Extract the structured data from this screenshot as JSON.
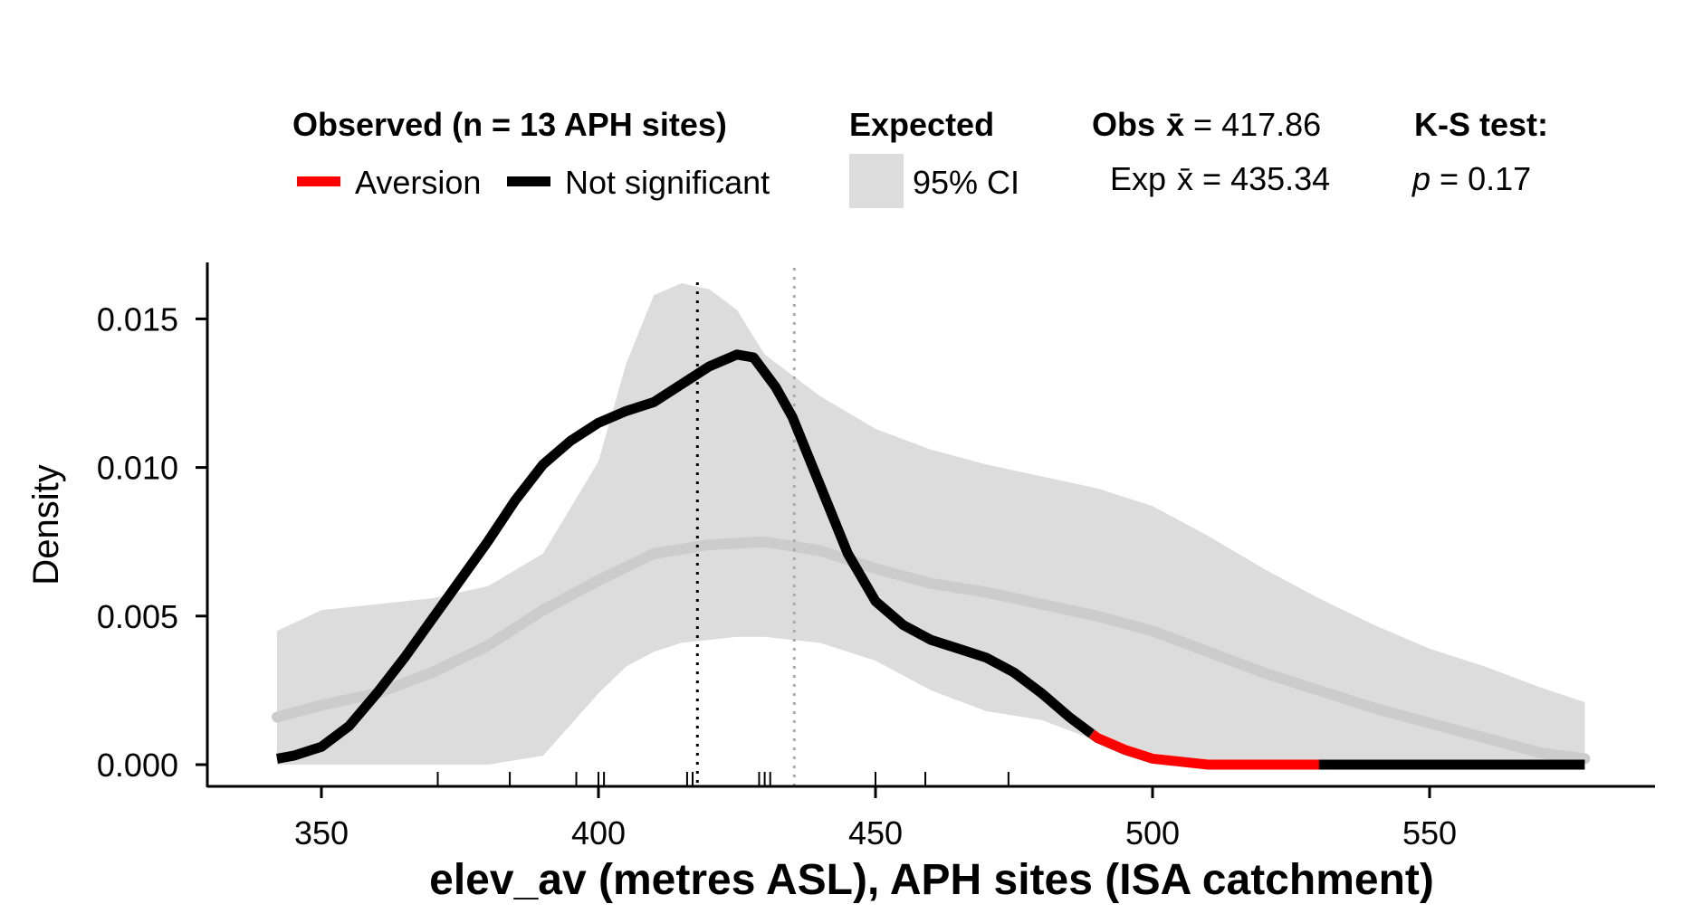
{
  "legend": {
    "observed_title": "Observed (n = 13 APH sites)",
    "observed_items": [
      {
        "label": "Aversion",
        "color": "#ff0000"
      },
      {
        "label": "Not significant",
        "color": "#000000"
      }
    ],
    "expected_title": "Expected",
    "expected_item": {
      "label": "95% CI",
      "color": "#dcdcdc"
    },
    "obs_mean_label": "Obs",
    "obs_mean_value": "417.86",
    "exp_mean_label": "Exp",
    "exp_mean_value": "435.34",
    "mean_symbol": "x̄",
    "ks_title": "K-S test:",
    "ks_p_label": "p",
    "ks_p_value": "0.17"
  },
  "chart_data": {
    "type": "area",
    "xlabel": "elev_av (metres ASL), APH sites (ISA catchment)",
    "ylabel": "Density",
    "xlim": [
      330,
      575
    ],
    "ylim": [
      -0.0005,
      0.017
    ],
    "x_ticks": [
      350,
      400,
      450,
      500,
      550
    ],
    "y_ticks": [
      0.0,
      0.005,
      0.01,
      0.015
    ],
    "y_tick_labels": [
      "0.000",
      "0.005",
      "0.010",
      "0.015"
    ],
    "obs_mean": 417.86,
    "exp_mean": 435.34,
    "colors": {
      "aversion": "#ff0000",
      "not_significant": "#000000",
      "ci_fill": "#dcdcdc",
      "expected_line": "#cccccc",
      "obs_mean_line": "#000000",
      "exp_mean_line": "#aaaaaa"
    },
    "rug": [
      371,
      384,
      396,
      400,
      401,
      416,
      417,
      429,
      430,
      431,
      450,
      459,
      474
    ],
    "series": [
      {
        "name": "95% CI",
        "kind": "band",
        "x": [
          342,
          350,
          360,
          370,
          380,
          390,
          400,
          405,
          410,
          415,
          420,
          425,
          430,
          440,
          450,
          460,
          470,
          480,
          490,
          500,
          510,
          520,
          530,
          540,
          550,
          560,
          570,
          578
        ],
        "upper": [
          0.0045,
          0.0052,
          0.0054,
          0.0056,
          0.006,
          0.0071,
          0.0102,
          0.0135,
          0.0158,
          0.0162,
          0.016,
          0.0153,
          0.0138,
          0.0124,
          0.0113,
          0.0106,
          0.0101,
          0.0097,
          0.0093,
          0.0087,
          0.0077,
          0.0066,
          0.0056,
          0.0047,
          0.0039,
          0.0033,
          0.0026,
          0.0021
        ],
        "lower": [
          0.0,
          0.0,
          0.0,
          0.0,
          0.0,
          0.0003,
          0.0024,
          0.0033,
          0.0038,
          0.0041,
          0.0042,
          0.0043,
          0.0043,
          0.0041,
          0.0035,
          0.0025,
          0.0018,
          0.0015,
          0.0008,
          0.0004,
          0.0001,
          0.0,
          0.0,
          0.0,
          0.0,
          0.0,
          0.0,
          0.0
        ]
      },
      {
        "name": "Expected",
        "kind": "line",
        "x": [
          342,
          350,
          360,
          370,
          380,
          390,
          400,
          410,
          420,
          430,
          440,
          450,
          460,
          470,
          480,
          490,
          500,
          510,
          520,
          530,
          540,
          550,
          560,
          570,
          578
        ],
        "y": [
          0.0016,
          0.002,
          0.0024,
          0.0031,
          0.004,
          0.0052,
          0.0062,
          0.0071,
          0.0074,
          0.0075,
          0.0072,
          0.0066,
          0.0061,
          0.0058,
          0.0054,
          0.005,
          0.0045,
          0.0038,
          0.0031,
          0.0025,
          0.0019,
          0.0014,
          0.0009,
          0.0004,
          0.0002
        ]
      },
      {
        "name": "Observed",
        "kind": "line",
        "x": [
          342,
          345,
          350,
          355,
          360,
          365,
          370,
          375,
          380,
          385,
          390,
          395,
          400,
          405,
          410,
          415,
          420,
          425,
          428,
          432,
          435,
          440,
          445,
          450,
          455,
          460,
          465,
          470,
          475,
          480,
          485,
          490,
          495,
          500,
          505,
          510,
          520,
          530,
          540,
          550,
          560,
          570,
          578
        ],
        "y": [
          0.0002,
          0.0003,
          0.0006,
          0.0013,
          0.0024,
          0.0036,
          0.0049,
          0.0062,
          0.0075,
          0.0089,
          0.0101,
          0.0109,
          0.0115,
          0.0119,
          0.0122,
          0.0128,
          0.0134,
          0.0138,
          0.0137,
          0.0127,
          0.0117,
          0.0094,
          0.0071,
          0.0055,
          0.0047,
          0.0042,
          0.0039,
          0.0036,
          0.0031,
          0.0024,
          0.0016,
          0.0009,
          0.0005,
          0.0002,
          0.0001,
          0.0,
          0.0,
          0.0,
          0.0,
          0.0,
          0.0,
          0.0,
          0.0
        ],
        "segments": [
          {
            "from": 342,
            "to": 489,
            "status": "Not significant"
          },
          {
            "from": 489,
            "to": 530,
            "status": "Aversion"
          },
          {
            "from": 530,
            "to": 578,
            "status": "Not significant"
          }
        ]
      }
    ]
  }
}
